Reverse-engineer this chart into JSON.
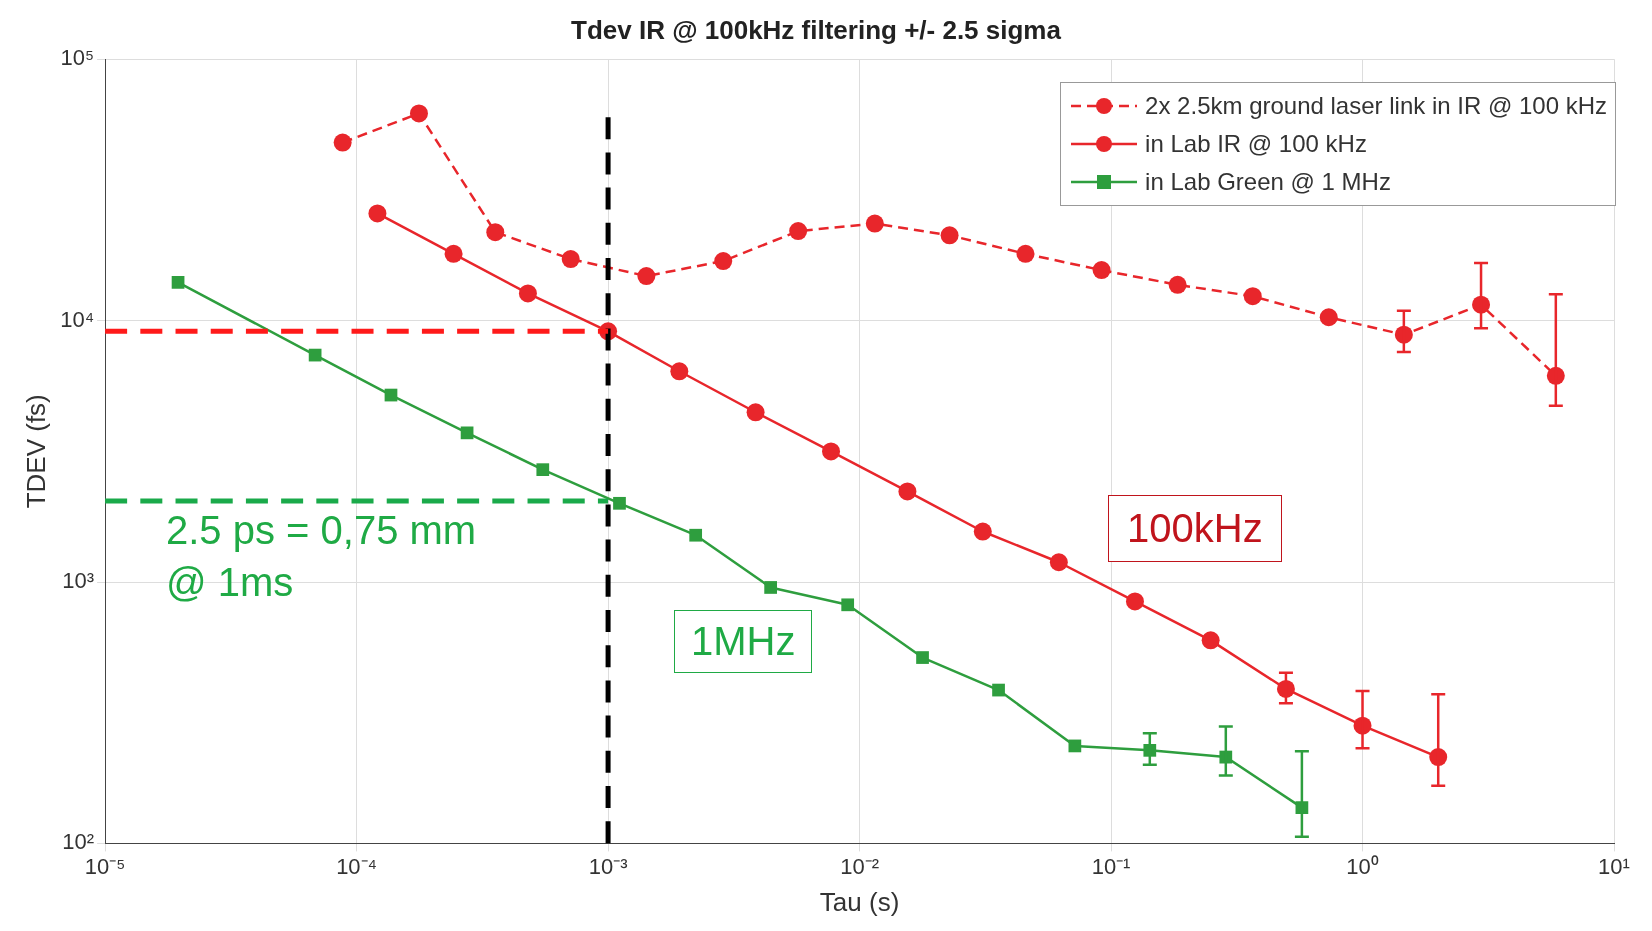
{
  "chart_data": {
    "type": "line",
    "title": "Tdev IR @ 100kHz filtering +/- 2.5 sigma",
    "xlabel": "Tau (s)",
    "ylabel": "TDEV (fs)",
    "log": "xy",
    "grid": true,
    "legend": "top right",
    "xlim": [
      1e-05,
      10
    ],
    "ylim": [
      100,
      100000
    ],
    "xticks": [
      {
        "value": 1e-05,
        "label": "10⁻⁵"
      },
      {
        "value": 0.0001,
        "label": "10⁻⁴"
      },
      {
        "value": 0.001,
        "label": "10⁻³"
      },
      {
        "value": 0.01,
        "label": "10⁻²"
      },
      {
        "value": 0.1,
        "label": "10⁻¹"
      },
      {
        "value": 1,
        "label": "10⁰"
      },
      {
        "value": 10,
        "label": "10¹"
      }
    ],
    "yticks": [
      {
        "value": 100,
        "label": "10²"
      },
      {
        "value": 1000,
        "label": "10³"
      },
      {
        "value": 10000,
        "label": "10⁴"
      },
      {
        "value": 100000,
        "label": "10⁵"
      }
    ],
    "series": [
      {
        "name": "2x 2.5km ground laser link in IR @ 100 kHz",
        "color": "#e8262b",
        "marker": "circle",
        "line_style": "dashed",
        "x": [
          8.8e-05,
          0.000177,
          0.000356,
          0.00071,
          0.00142,
          0.00287,
          0.0057,
          0.0115,
          0.0228,
          0.0457,
          0.0917,
          0.184,
          0.366,
          0.734,
          1.46,
          2.96,
          5.87
        ],
        "values": [
          48000,
          62000,
          21800,
          17200,
          14800,
          16900,
          22000,
          23500,
          21200,
          18000,
          15600,
          13700,
          12400,
          10300,
          8830,
          11500,
          6150
        ],
        "errors": [
          null,
          null,
          null,
          null,
          null,
          null,
          null,
          null,
          null,
          null,
          null,
          null,
          null,
          null,
          [
            7590,
            10900
          ],
          [
            9350,
            16600
          ],
          [
            4720,
            12600
          ]
        ]
      },
      {
        "name": "in Lab IR @ 100 kHz",
        "color": "#e8262b",
        "marker": "circle",
        "line_style": "solid",
        "x": [
          0.000121,
          0.000243,
          0.00048,
          0.001,
          0.00192,
          0.00386,
          0.0077,
          0.0155,
          0.0309,
          0.062,
          0.1245,
          0.249,
          0.496,
          1.0,
          2.0
        ],
        "values": [
          25700,
          18000,
          12700,
          9100,
          6400,
          4460,
          3160,
          2220,
          1560,
          1190,
          843,
          598,
          390,
          282,
          214
        ],
        "errors": [
          null,
          null,
          null,
          null,
          null,
          null,
          null,
          null,
          null,
          null,
          null,
          null,
          [
            344,
            450
          ],
          [
            231,
            383
          ],
          [
            166,
            372
          ]
        ]
      },
      {
        "name": "in Lab Green @ 1 MHz",
        "color": "#2e9e3e",
        "marker": "square",
        "line_style": "solid",
        "x": [
          1.95e-05,
          6.84e-05,
          0.000137,
          0.000275,
          0.00055,
          0.00111,
          0.00223,
          0.00443,
          0.00897,
          0.0178,
          0.0357,
          0.0718,
          0.1426,
          0.286,
          0.574
        ],
        "values": [
          14000,
          7380,
          5190,
          3720,
          2690,
          2000,
          1510,
          953,
          818,
          514,
          386,
          236,
          227,
          214,
          137
        ],
        "errors": [
          null,
          null,
          null,
          null,
          null,
          null,
          null,
          null,
          null,
          null,
          null,
          null,
          [
            200,
            264
          ],
          [
            182,
            280
          ],
          [
            106,
            225
          ]
        ]
      }
    ],
    "ref_lines": [
      {
        "axis": "x",
        "value": 0.001,
        "color": "#000000",
        "line_style": "dashed"
      },
      {
        "axis": "y",
        "value": 9100,
        "color": "#ff1a1a",
        "line_style": "dashed"
      },
      {
        "axis": "y",
        "value": 2040,
        "color": "#1aaa4a",
        "line_style": "dashed"
      }
    ],
    "annotations": [
      "2.5 ps = 0,75 mm\n@ 1ms",
      "1MHz",
      "100kHz"
    ]
  }
}
